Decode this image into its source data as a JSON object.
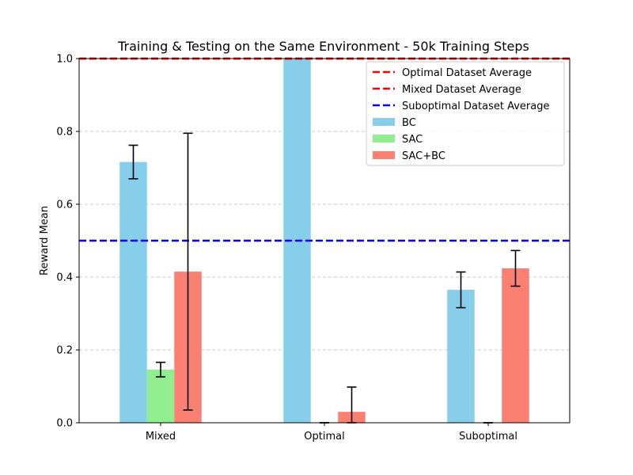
{
  "chart_data": {
    "type": "bar",
    "title": "Training & Testing on the Same Environment - 50k Training Steps",
    "xlabel": "",
    "ylabel": "Reward Mean",
    "ylim": [
      0,
      1.0
    ],
    "yticks": [
      "0.0",
      "0.2",
      "0.4",
      "0.6",
      "0.8",
      "1.0"
    ],
    "grid": "y-dashed",
    "legend_position": "top-right",
    "categories": [
      "Mixed",
      "Optimal",
      "Suboptimal"
    ],
    "series": [
      {
        "name": "BC",
        "color": "#87ceeb",
        "values": [
          0.716,
          1.0,
          0.365
        ],
        "errors": [
          0.046,
          null,
          0.049
        ]
      },
      {
        "name": "SAC",
        "color": "#90ee90",
        "values": [
          0.146,
          0.0,
          0.0
        ],
        "errors": [
          0.02,
          0.0,
          0.0
        ]
      },
      {
        "name": "SAC+BC",
        "color": "#fa8072",
        "values": [
          0.415,
          0.03,
          0.424
        ],
        "errors": [
          0.38,
          0.068,
          0.049
        ]
      }
    ],
    "reference_lines": [
      {
        "name": "Optimal Dataset Average",
        "color": "#ff0000",
        "value": 1.0
      },
      {
        "name": "Mixed Dataset Average",
        "color": "#ff0000",
        "value": 1.0
      },
      {
        "name": "Suboptimal Dataset Average",
        "color": "#0000ff",
        "value": 0.5
      }
    ]
  }
}
